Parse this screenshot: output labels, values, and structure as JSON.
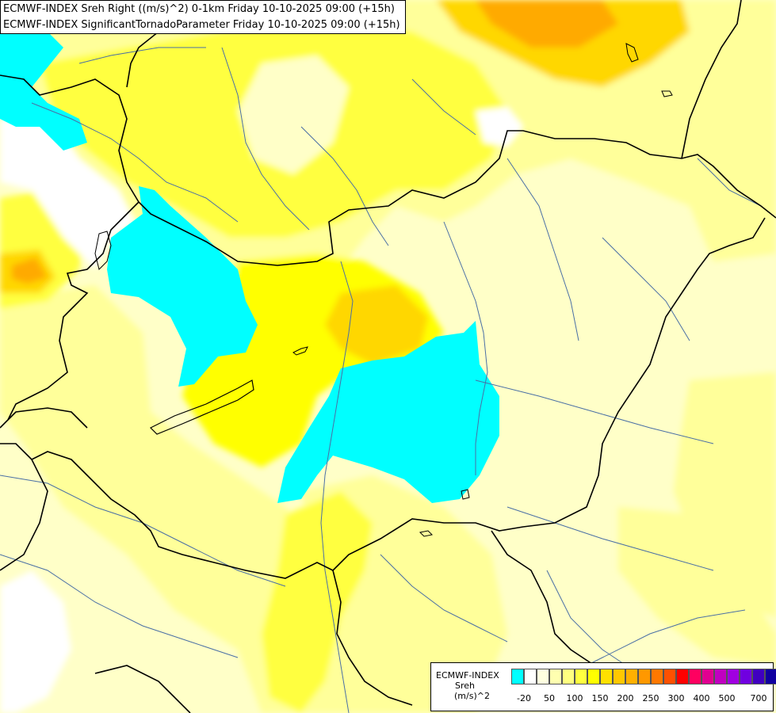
{
  "title": {
    "line1": "ECMWF-INDEX Sreh Right ((m/s)^2) 0-1km Friday 10-10-2025 09:00 (+15h)",
    "line2": "ECMWF-INDEX SignificantTornadoParameter Friday 10-10-2025 09:00 (+15h)"
  },
  "legend": {
    "model": "ECMWF-INDEX",
    "parameter": "Sreh",
    "unit": "(m/s)^2",
    "colors": [
      "#00ffff",
      "#ffffff",
      "#ffffe0",
      "#ffffb0",
      "#ffff80",
      "#ffff40",
      "#ffff00",
      "#ffe000",
      "#ffc800",
      "#ffb000",
      "#ff9800",
      "#ff7800",
      "#ff5000",
      "#ff0000",
      "#ff0060",
      "#e00090",
      "#c000c0",
      "#a000e0",
      "#7000e0",
      "#4000c0",
      "#1000a0",
      "#000080"
    ],
    "ticks": [
      "-20",
      "50",
      "100",
      "150",
      "200",
      "250",
      "300",
      "400",
      "500",
      "700"
    ]
  },
  "map": {
    "palette": {
      "cyan": "#00ffff",
      "white": "#ffffff",
      "pale": "#ffffc8",
      "light_yellow": "#ffff9a",
      "yellow": "#ffff40",
      "strong_yellow": "#ffff00",
      "gold": "#ffd700",
      "orange": "#ffaa00",
      "border": "#000000",
      "river": "#4a6fa5"
    }
  }
}
